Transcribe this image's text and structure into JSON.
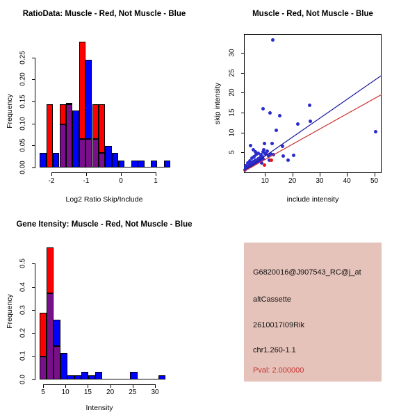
{
  "figure": {
    "background": "#FFFFFF",
    "layout": "2x2 R graphics panel figure"
  },
  "chart_data": [
    {
      "id": "ratio-histogram",
      "type": "bar",
      "subtype": "overlaid-histogram",
      "title": "RatioData: Muscle - Red, Not Muscle - Blue",
      "xlabel": "Log2 Ratio Skip/Include",
      "ylabel": "Frequency",
      "xlim": [
        -2.5,
        1.5
      ],
      "ylim": [
        0,
        0.29
      ],
      "x_ticks": [
        -2,
        -1,
        0,
        1
      ],
      "y_ticks": [
        0,
        0.05,
        0.1,
        0.15,
        0.2,
        0.25
      ],
      "y_tick_labels": [
        "0.00",
        "0.05",
        "0.10",
        "0.15",
        "0.20",
        "0.25"
      ],
      "bin_start": -2.334,
      "bin_width": 0.188,
      "grid": false,
      "series": [
        {
          "name": "Muscle",
          "color": "#FF0000",
          "values": [
            0,
            0.143,
            0,
            0.143,
            0.143,
            0,
            0.286,
            0.065,
            0.143,
            0.143,
            0,
            0,
            0,
            0,
            0,
            0,
            0,
            0,
            0,
            0
          ]
        },
        {
          "name": "Not Muscle",
          "color": "#0000FF",
          "values": [
            0.033,
            0,
            0.033,
            0.098,
            0.146,
            0.13,
            0.065,
            0.244,
            0.065,
            0.033,
            0.049,
            0.033,
            0.016,
            0,
            0.016,
            0.016,
            0,
            0.016,
            0,
            0.016
          ]
        }
      ],
      "overlap_color": "#7A0F8C"
    },
    {
      "id": "intensity-scatter",
      "type": "scatter",
      "title": "Muscle - Red, Not Muscle - Blue",
      "xlabel": "include intensity",
      "ylabel": "skip intensity",
      "xlim": [
        2,
        52.6
      ],
      "ylim": [
        -0.5,
        34.8
      ],
      "x_ticks": [
        10,
        20,
        30,
        40,
        50
      ],
      "y_ticks": [
        5,
        10,
        15,
        20,
        25,
        30
      ],
      "grid": false,
      "series": [
        {
          "name": "Not Muscle",
          "color": "#2B2BCE",
          "points": [
            [
              12.9,
              33.3
            ],
            [
              9.3,
              15.9
            ],
            [
              11.9,
              14.9
            ],
            [
              15.3,
              14.3
            ],
            [
              26.4,
              16.8
            ],
            [
              26.7,
              12.9
            ],
            [
              22,
              12.1
            ],
            [
              14.2,
              10.5
            ],
            [
              50.6,
              10.2
            ],
            [
              4.6,
              6.8
            ],
            [
              9.7,
              7.3
            ],
            [
              12.7,
              7.2
            ],
            [
              16.5,
              6.5
            ],
            [
              20.6,
              4.2
            ],
            [
              18.4,
              3
            ],
            [
              16.7,
              4.1
            ],
            [
              2.6,
              0.6
            ],
            [
              3,
              1.1
            ],
            [
              3.4,
              1.5
            ],
            [
              3.8,
              1.1
            ],
            [
              4.2,
              1.9
            ],
            [
              4.6,
              1.5
            ],
            [
              5,
              2.3
            ],
            [
              5.4,
              1.9
            ],
            [
              5.8,
              2.7
            ],
            [
              6.2,
              2.2
            ],
            [
              6.6,
              3.1
            ],
            [
              7,
              2.5
            ],
            [
              7.4,
              3.4
            ],
            [
              7.8,
              2.9
            ],
            [
              8.2,
              3.7
            ],
            [
              8.6,
              3.1
            ],
            [
              9,
              4
            ],
            [
              9.4,
              3.4
            ],
            [
              4.4,
              2.9
            ],
            [
              5.2,
              3.5
            ],
            [
              6,
              4
            ],
            [
              6.8,
              4.4
            ],
            [
              7.6,
              4.8
            ],
            [
              8.4,
              4.5
            ],
            [
              9.2,
              5.1
            ],
            [
              10,
              4.7
            ],
            [
              10.7,
              5.3
            ],
            [
              6.4,
              5.2
            ],
            [
              10.4,
              4.8
            ],
            [
              11.3,
              4.1
            ],
            [
              12,
              4.6
            ],
            [
              3.6,
              2.3
            ],
            [
              2.8,
              1.7
            ],
            [
              5.6,
              5.6
            ],
            [
              9.6,
              5.7
            ],
            [
              8.8,
              2.4
            ],
            [
              11.6,
              3
            ],
            [
              13,
              4.4
            ]
          ]
        },
        {
          "name": "Muscle",
          "color": "#EE1111",
          "points": [
            [
              9.8,
              1.8
            ],
            [
              12.4,
              3.1
            ]
          ]
        }
      ],
      "fit_lines": [
        {
          "name": "not-muscle-fit",
          "color": "#1A1A99",
          "x1": 2.2,
          "y1": 0.45,
          "x2": 52.6,
          "y2": 24.4
        },
        {
          "name": "muscle-fit",
          "color": "#CC3030",
          "x1": 2.2,
          "y1": 0.3,
          "x2": 52.6,
          "y2": 19.6
        }
      ]
    },
    {
      "id": "gene-intensity-histogram",
      "type": "bar",
      "subtype": "overlaid-histogram",
      "title": "Gene Itensity: Muscle - Red, Not Muscle - Blue",
      "xlabel": "Intensity",
      "ylabel": "Frequency",
      "xlim": [
        4,
        33.6
      ],
      "ylim": [
        0,
        0.585
      ],
      "x_ticks": [
        5,
        10,
        15,
        20,
        25,
        30
      ],
      "y_ticks": [
        0,
        0.1,
        0.2,
        0.3,
        0.4,
        0.5
      ],
      "y_tick_labels": [
        "0.0",
        "0.1",
        "0.2",
        "0.3",
        "0.4",
        "0.5"
      ],
      "bin_start": 4.17,
      "bin_width": 1.5625,
      "grid": false,
      "series": [
        {
          "name": "Muscle",
          "color": "#FF0000",
          "values": [
            0.286,
            0.571,
            0.143,
            0,
            0,
            0,
            0,
            0,
            0,
            0,
            0,
            0,
            0,
            0,
            0,
            0,
            0,
            0
          ]
        },
        {
          "name": "Not Muscle",
          "color": "#0000FF",
          "values": [
            0.098,
            0.371,
            0.258,
            0.113,
            0.016,
            0.016,
            0.032,
            0.016,
            0.032,
            0,
            0,
            0,
            0,
            0.032,
            0,
            0,
            0,
            0.016
          ]
        }
      ],
      "overlap_color": "#7A0F8C"
    },
    {
      "id": "gene-info",
      "type": "info-panel",
      "background": "#E6C3BA",
      "lines": [
        "G6820016@J907543_RC@j_at",
        "altCassette",
        "2610017I09Rik",
        "chr1.260-1.1"
      ],
      "pval": {
        "text": "Pval: 2.000000",
        "color": "#C53030"
      }
    }
  ]
}
